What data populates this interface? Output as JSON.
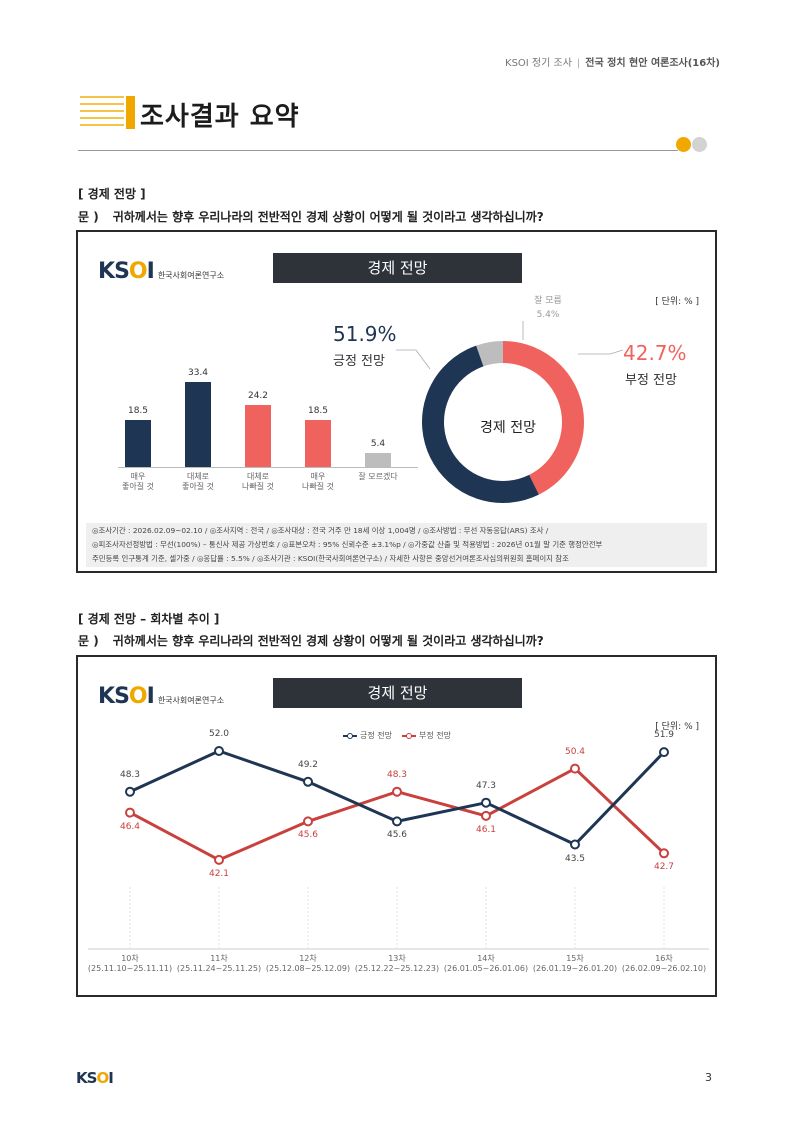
{
  "header": {
    "left": "KSOI 정기 조사",
    "right": "전국 정치 현안 여론조사(16차)"
  },
  "page_title": "조사결과 요약",
  "section1": {
    "label": "[ 경제 전망 ]",
    "q_prefix": "문 )",
    "question": "귀하께서는 향후 우리나라의 전반적인 경제 상황이 어떻게 될 것이라고 생각하십니까?",
    "logo_mark": "KSOI",
    "logo_org": "한국사회여론연구소",
    "panel_title": "경제 전망",
    "unit": "[ 단위: % ]",
    "donut_center": "경제 전망",
    "positive_pct": "51.9%",
    "positive_label": "긍정 전망",
    "negative_pct": "42.7%",
    "negative_label": "부정 전망",
    "dk_label": "잘 모름",
    "dk_pct": "5.4%",
    "note_lines": [
      "◎조사기간 : 2026.02.09~02.10 / ◎조사지역 : 전국 / ◎조사대상 : 전국 거주 만 18세 이상 1,004명 / ◎조사방법 : 무선 자동응답(ARS) 조사 /",
      "◎피조사자선정방법 : 무선(100%) – 통신사 제공 가상번호 / ◎표본오차 : 95% 신뢰수준 ±3.1%p / ◎가중값 산출 및 적용방법 : 2026년 01월 말 기준 행정안전부",
      "주민등록 인구통계 기준, 셀가중 / ◎응답률 : 5.5% / ◎조사기관 : KSOI(한국사회여론연구소) / 자세한 사항은 중앙선거여론조사심의위원회 홈페이지 참조"
    ]
  },
  "section2": {
    "label": "[ 경제 전망 – 회차별 추이 ]",
    "q_prefix": "문 )",
    "question": "귀하께서는 향후 우리나라의 전반적인 경제 상황이 어떻게 될 것이라고 생각하십니까?",
    "logo_mark": "KSOI",
    "logo_org": "한국사회여론연구소",
    "panel_title": "경제 전망",
    "unit": "[ 단위: % ]"
  },
  "footer": {
    "logo_mark": "KSOI",
    "page_number": "3"
  },
  "colors": {
    "navy": "#1e3553",
    "red": "#f0625d",
    "red_line": "#c9403c",
    "gray": "#bdbdbd",
    "accent": "#f0a800"
  },
  "chart_data": [
    {
      "type": "bar",
      "title": "경제 전망",
      "categories": [
        "매우\n좋아질 것",
        "대체로\n좋아질 것",
        "대체로\n나빠질 것",
        "매우\n나빠질 것",
        "잘 모르겠다"
      ],
      "values": [
        18.5,
        33.4,
        24.2,
        18.5,
        5.4
      ],
      "value_labels": [
        "18.5",
        "33.4",
        "24.2",
        "18.5",
        "5.4"
      ],
      "colors": [
        "#1e3553",
        "#1e3553",
        "#f0625d",
        "#f0625d",
        "#bdbdbd"
      ],
      "ylim": [
        0,
        40
      ]
    },
    {
      "type": "pie",
      "title": "경제 전망",
      "donut": true,
      "labels": [
        "긍정 전망",
        "부정 전망",
        "잘 모름"
      ],
      "values": [
        51.9,
        42.7,
        5.4
      ],
      "colors": [
        "#1e3553",
        "#f0625d",
        "#bdbdbd"
      ]
    },
    {
      "type": "line",
      "title": "경제 전망",
      "categories": [
        "10차\n(25.11.10~25.11.11)",
        "11차\n(25.11.24~25.11.25)",
        "12차\n(25.12.08~25.12.09)",
        "13차\n(25.12.22~25.12.23)",
        "14차\n(26.01.05~26.01.06)",
        "15차\n(26.01.19~26.01.20)",
        "16차\n(26.02.09~26.02.10)"
      ],
      "series": [
        {
          "name": "긍정 전망",
          "values": [
            48.3,
            52.0,
            49.2,
            45.6,
            47.3,
            43.5,
            51.9
          ],
          "labels": [
            "48.3",
            "52.0",
            "49.2",
            "45.6",
            "47.3",
            "43.5",
            "51.9"
          ],
          "color": "#1e3553"
        },
        {
          "name": "부정 전망",
          "values": [
            46.4,
            42.1,
            45.6,
            48.3,
            46.1,
            50.4,
            42.7
          ],
          "labels": [
            "46.4",
            "42.1",
            "45.6",
            "48.3",
            "46.1",
            "50.4",
            "42.7"
          ],
          "color": "#c9403c"
        }
      ],
      "legend": "top-center"
    }
  ]
}
